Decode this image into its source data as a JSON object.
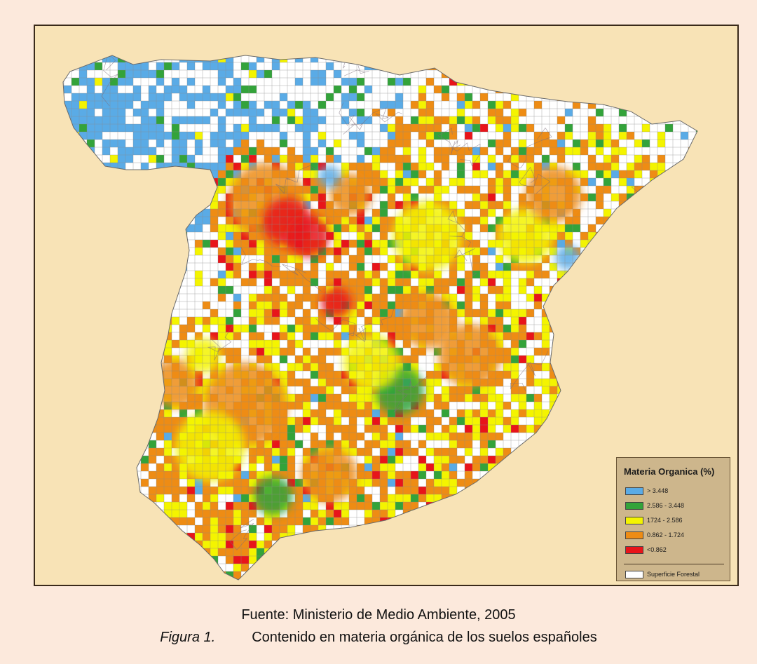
{
  "legend": {
    "title": "Materia Organica (%)",
    "items": [
      {
        "label": "> 3.448",
        "color": "#5aabe6"
      },
      {
        "label": "2.586 - 3.448",
        "color": "#33a33a"
      },
      {
        "label": "1724 - 2.586",
        "color": "#f4f400"
      },
      {
        "label": "0.862 - 1.724",
        "color": "#ee8c14"
      },
      {
        "label": "<0.862",
        "color": "#e8141a"
      }
    ],
    "forest": {
      "label": "Superficie Forestal",
      "color": "#ffffff"
    }
  },
  "caption": {
    "source": "Fuente: Ministerio de Medio Ambiente, 2005",
    "figure_label": "Figura 1.",
    "figure_title": "Contenido en materia orgánica de los suelos españoles"
  },
  "colors": {
    "page_background": "#fce9dc",
    "map_background": "#f8e3b6",
    "grid_cell": "#ffffff",
    "grid_line": "#8a8a8a"
  }
}
